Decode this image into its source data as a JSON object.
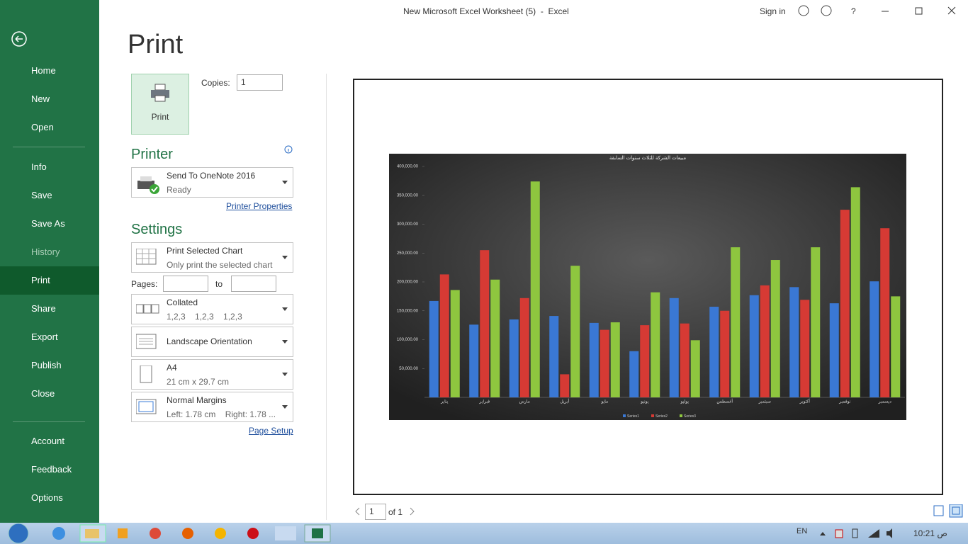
{
  "window": {
    "title": "New Microsoft Excel Worksheet (5)  -  Excel",
    "sign_in": "Sign in",
    "help": "?"
  },
  "sidebar": {
    "items": [
      "Home",
      "New",
      "Open",
      "Info",
      "Save",
      "Save As",
      "History",
      "Print",
      "Share",
      "Export",
      "Publish",
      "Close",
      "Account",
      "Feedback",
      "Options"
    ]
  },
  "print_panel": {
    "heading": "Print",
    "print_button": "Print",
    "copies_label": "Copies:",
    "copies": "1",
    "printer_heading": "Printer",
    "printer_name": "Send To OneNote 2016",
    "printer_status": "Ready",
    "printer_properties": "Printer Properties",
    "settings_heading": "Settings",
    "what": {
      "main": "Print Selected Chart",
      "sub": "Only print the selected chart"
    },
    "pages_label": "Pages:",
    "to_label": "to",
    "collation": {
      "main": "Collated",
      "sub": "1,2,3    1,2,3    1,2,3"
    },
    "orientation": {
      "main": "Landscape Orientation"
    },
    "paper": {
      "main": "A4",
      "sub": "21 cm x 29.7 cm"
    },
    "margins": {
      "main": "Normal Margins",
      "sub": "Left: 1.78 cm    Right: 1.78 ..."
    },
    "page_setup": "Page Setup"
  },
  "preview_nav": {
    "page": "1",
    "of": "of 1"
  },
  "taskbar": {
    "language": "EN",
    "clock": "10:21 ص"
  },
  "chart_data": {
    "type": "bar",
    "title": "مبيعات الشركة للثلاث سنوات السابقة",
    "categories": [
      "يناير",
      "فبراير",
      "مارس",
      "أبريل",
      "مايو",
      "يونيو",
      "يوليو",
      "أغسطس",
      "سبتمبر",
      "أكتوبر",
      "نوفمبر",
      "ديسمبر"
    ],
    "series": [
      {
        "name": "Series1",
        "color": "#3a78d4",
        "values": [
          167000,
          126000,
          135000,
          141000,
          129000,
          80000,
          172000,
          157000,
          177000,
          191000,
          163000,
          201000
        ]
      },
      {
        "name": "Series2",
        "color": "#d63a34",
        "values": [
          213000,
          255000,
          172000,
          40000,
          117000,
          125000,
          128000,
          150000,
          194000,
          169000,
          325000,
          293000
        ]
      },
      {
        "name": "Series3",
        "color": "#8ec63f",
        "values": [
          186000,
          204000,
          374000,
          228000,
          130000,
          182000,
          99000,
          260000,
          238000,
          260000,
          364000,
          175000
        ]
      }
    ],
    "ylim": [
      0,
      400000
    ],
    "yticks": [
      {
        "value": 50000,
        "label": "50,000.00"
      },
      {
        "value": 100000,
        "label": "100,000.00"
      },
      {
        "value": 150000,
        "label": "150,000.00"
      },
      {
        "value": 200000,
        "label": "200,000.00"
      },
      {
        "value": 250000,
        "label": "250,000.00"
      },
      {
        "value": 300000,
        "label": "300,000.00"
      },
      {
        "value": 350000,
        "label": "350,000.00"
      },
      {
        "value": 400000,
        "label": "400,000.00"
      }
    ]
  }
}
